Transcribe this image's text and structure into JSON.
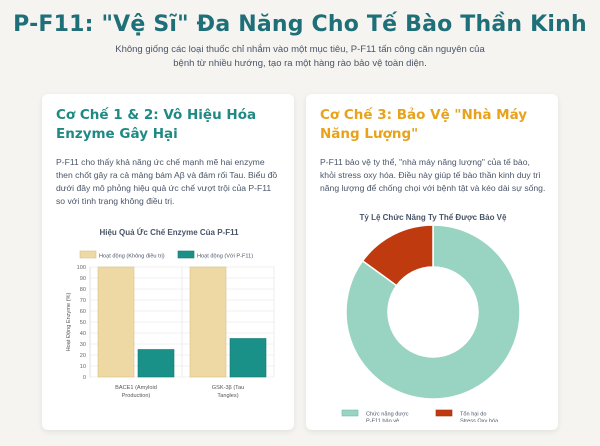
{
  "header": {
    "title": "P-F11: \"Vệ Sĩ\" Đa Năng Cho Tế Bào Thần Kinh",
    "subtitle": "Không giống các loại thuốc chỉ nhắm vào một mục tiêu, P-F11 tấn công căn nguyên của bệnh từ nhiều hướng, tạo ra một hàng rào bảo vệ toàn diện."
  },
  "left_card": {
    "title": "Cơ Chế 1 & 2: Vô Hiệu Hóa Enzyme Gây Hại",
    "text": "P-F11 cho thấy khả năng ức chế mạnh mẽ hai enzyme then chốt gây ra cả mảng bám Aβ và đám rối Tau. Biểu đồ dưới đây mô phỏng hiệu quả ức chế vượt trội của P-F11 so với tình trạng không điều trị.",
    "chart_title": "Hiệu Quả Ức Chế Enzyme Của P-F11"
  },
  "right_card": {
    "title": "Cơ Chế 3: Bảo Vệ \"Nhà Máy Năng Lượng\"",
    "text": "P-F11 bảo vệ ty thể, \"nhà máy năng lượng\" của tế bào, khỏi stress oxy hóa. Điều này giúp tế bào thần kinh duy trì năng lượng để chống chọi với bệnh tật và kéo dài sự sống.",
    "chart_title": "Tỷ Lệ Chức Năng Ty Thể Được Bảo Vệ"
  },
  "colors": {
    "teal": "#1f8a84",
    "amber": "#e8a21b",
    "bar_untreated": "#eed9a4",
    "bar_treated": "#1a9188",
    "donut_protected": "#99d3c2",
    "donut_damage": "#c03a10"
  },
  "chart_data": [
    {
      "type": "bar",
      "title": "Hiệu Quả Ức Chế Enzyme Của P-F11",
      "categories": [
        [
          "BACE1 (Amyloid",
          "Production)"
        ],
        [
          "GSK-3β (Tau",
          "Tangles)"
        ]
      ],
      "series": [
        {
          "name": "Hoạt động (Không điều trị)",
          "values": [
            100,
            100
          ]
        },
        {
          "name": "Hoạt động (Với P-F11)",
          "values": [
            25,
            35
          ]
        }
      ],
      "ylabel": "Hoạt Động Enzyme (%)",
      "ylim": [
        0,
        100
      ],
      "yticks": [
        0,
        10,
        20,
        30,
        40,
        50,
        60,
        70,
        80,
        90,
        100
      ],
      "grid": true,
      "legend": "top"
    },
    {
      "type": "pie",
      "title": "Tỷ Lệ Chức Năng Ty Thể Được Bảo Vệ",
      "labels": [
        [
          "Chức năng được",
          "P-F11 bảo vệ"
        ],
        [
          "Tổn hại do",
          "Stress Oxy hóa"
        ]
      ],
      "values": [
        85,
        15
      ],
      "legend": "bottom"
    }
  ]
}
